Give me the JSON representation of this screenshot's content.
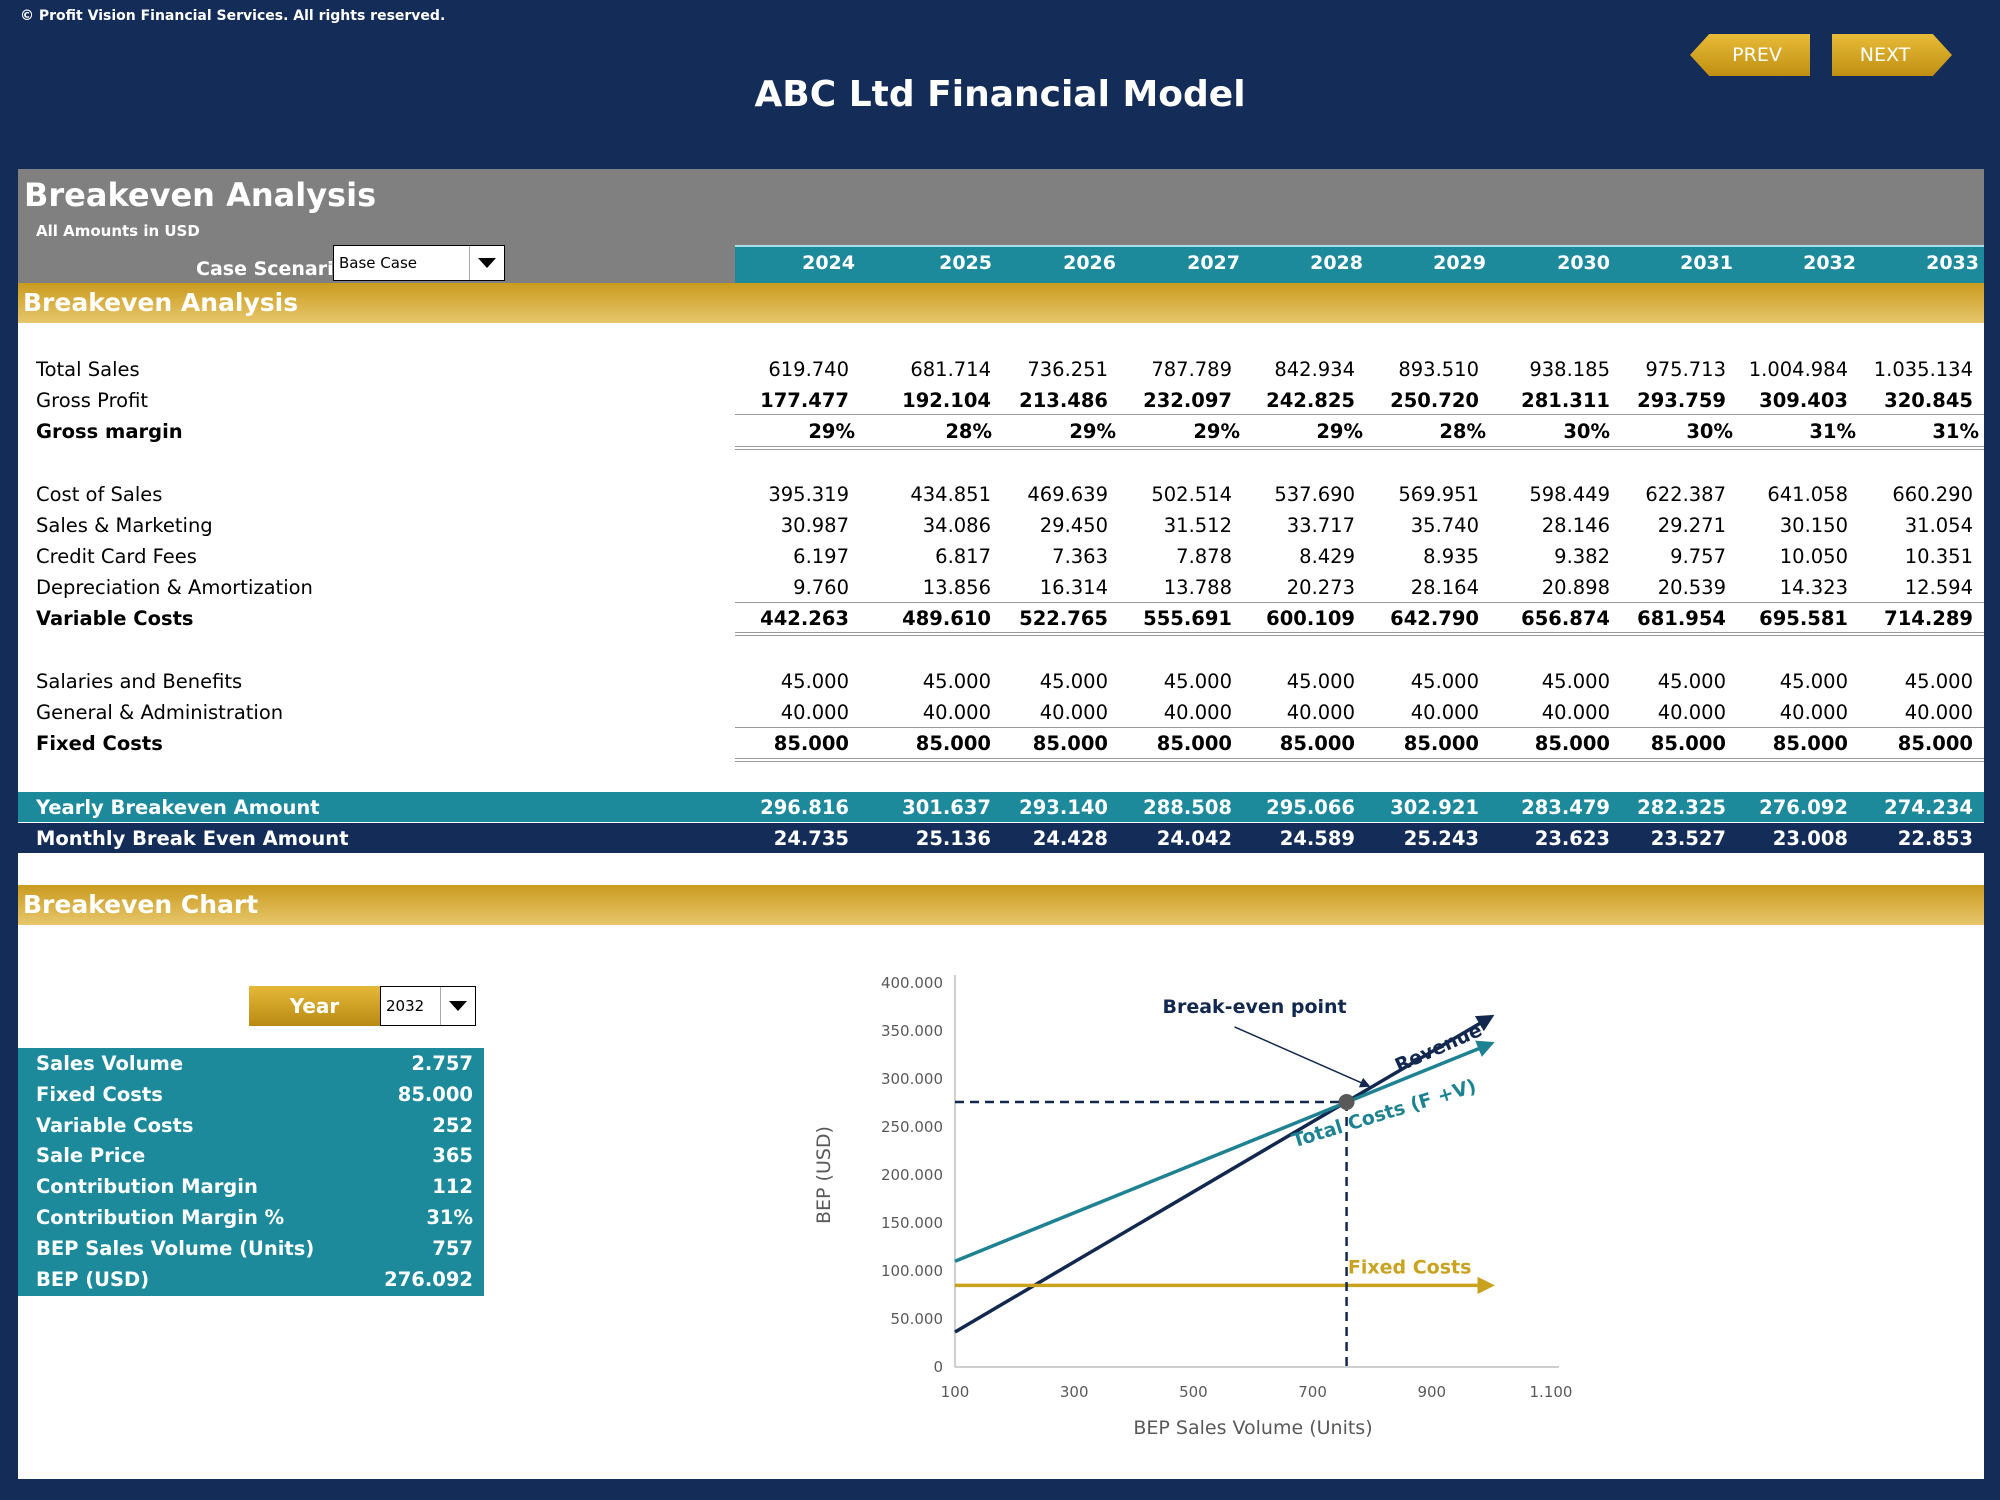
{
  "copyright": "© Profit Vision Financial Services. All rights reserved.",
  "title": "ABC Ltd Financial Model",
  "nav": {
    "prev": "PREV",
    "next": "NEXT"
  },
  "sheet": {
    "title": "Breakeven Analysis",
    "amounts_note": "All Amounts in  USD",
    "case_label": "Case Scenario",
    "case_value": "Base Case",
    "section_title": "Breakeven Analysis",
    "chart_section_title": "Breakeven Chart"
  },
  "years": [
    "2024",
    "2025",
    "2026",
    "2027",
    "2028",
    "2029",
    "2030",
    "2031",
    "2032",
    "2033"
  ],
  "rows": {
    "total_sales": {
      "label": "Total Sales",
      "values": [
        "619.740",
        "681.714",
        "736.251",
        "787.789",
        "842.934",
        "893.510",
        "938.185",
        "975.713",
        "1.004.984",
        "1.035.134"
      ]
    },
    "gross_profit": {
      "label": "Gross Profit",
      "values": [
        "177.477",
        "192.104",
        "213.486",
        "232.097",
        "242.825",
        "250.720",
        "281.311",
        "293.759",
        "309.403",
        "320.845"
      ]
    },
    "gross_margin": {
      "label": "Gross margin",
      "values": [
        "29%",
        "28%",
        "29%",
        "29%",
        "29%",
        "28%",
        "30%",
        "30%",
        "31%",
        "31%"
      ]
    },
    "cost_of_sales": {
      "label": "Cost of Sales",
      "values": [
        "395.319",
        "434.851",
        "469.639",
        "502.514",
        "537.690",
        "569.951",
        "598.449",
        "622.387",
        "641.058",
        "660.290"
      ]
    },
    "sales_marketing": {
      "label": "Sales & Marketing",
      "values": [
        "30.987",
        "34.086",
        "29.450",
        "31.512",
        "33.717",
        "35.740",
        "28.146",
        "29.271",
        "30.150",
        "31.054"
      ]
    },
    "credit_card_fees": {
      "label": "Credit Card Fees",
      "values": [
        "6.197",
        "6.817",
        "7.363",
        "7.878",
        "8.429",
        "8.935",
        "9.382",
        "9.757",
        "10.050",
        "10.351"
      ]
    },
    "depreciation": {
      "label": "Depreciation & Amortization",
      "values": [
        "9.760",
        "13.856",
        "16.314",
        "13.788",
        "20.273",
        "28.164",
        "20.898",
        "20.539",
        "14.323",
        "12.594"
      ]
    },
    "variable_costs": {
      "label": "Variable Costs",
      "values": [
        "442.263",
        "489.610",
        "522.765",
        "555.691",
        "600.109",
        "642.790",
        "656.874",
        "681.954",
        "695.581",
        "714.289"
      ]
    },
    "salaries": {
      "label": "Salaries and Benefits",
      "values": [
        "45.000",
        "45.000",
        "45.000",
        "45.000",
        "45.000",
        "45.000",
        "45.000",
        "45.000",
        "45.000",
        "45.000"
      ]
    },
    "general_admin": {
      "label": "General & Administration",
      "values": [
        "40.000",
        "40.000",
        "40.000",
        "40.000",
        "40.000",
        "40.000",
        "40.000",
        "40.000",
        "40.000",
        "40.000"
      ]
    },
    "fixed_costs": {
      "label": "Fixed Costs",
      "values": [
        "85.000",
        "85.000",
        "85.000",
        "85.000",
        "85.000",
        "85.000",
        "85.000",
        "85.000",
        "85.000",
        "85.000"
      ]
    },
    "yearly_breakeven": {
      "label": "Yearly Breakeven Amount",
      "values": [
        "296.816",
        "301.637",
        "293.140",
        "288.508",
        "295.066",
        "302.921",
        "283.479",
        "282.325",
        "276.092",
        "274.234"
      ]
    },
    "monthly_breakeven": {
      "label": "Monthly Break Even Amount",
      "values": [
        "24.735",
        "25.136",
        "24.428",
        "24.042",
        "24.589",
        "25.243",
        "23.623",
        "23.527",
        "23.008",
        "22.853"
      ]
    }
  },
  "year_selector": {
    "label": "Year",
    "value": "2032"
  },
  "summary": [
    {
      "label": "Sales Volume",
      "value": "2.757"
    },
    {
      "label": "Fixed Costs",
      "value": "85.000"
    },
    {
      "label": "Variable Costs",
      "value": "252"
    },
    {
      "label": "Sale Price",
      "value": "365"
    },
    {
      "label": "Contribution Margin",
      "value": "112"
    },
    {
      "label": "Contribution Margin %",
      "value": "31%"
    },
    {
      "label": "BEP Sales Volume (Units)",
      "value": "757"
    },
    {
      "label": "BEP (USD)",
      "value": "276.092"
    }
  ],
  "chart_data": {
    "type": "line",
    "xlabel": "BEP Sales Volume (Units)",
    "ylabel": "BEP (USD)",
    "xlim": [
      100,
      1100
    ],
    "ylim": [
      0,
      400000
    ],
    "x_ticks": [
      "100",
      "300",
      "500",
      "700",
      "900",
      "1.100"
    ],
    "y_ticks": [
      "0",
      "50.000",
      "100.000",
      "150.000",
      "200.000",
      "250.000",
      "300.000",
      "350.000",
      "400.000"
    ],
    "grid": false,
    "series": [
      {
        "name": "Revenue",
        "color": "#12284f",
        "x": [
          100,
          1000
        ],
        "y": [
          36500,
          365000
        ]
      },
      {
        "name": "Total Costs (F +V)",
        "color": "#1f8293",
        "x": [
          100,
          1000
        ],
        "y": [
          110200,
          337000
        ]
      },
      {
        "name": "Fixed Costs",
        "color": "#c9a21f",
        "x": [
          100,
          1000
        ],
        "y": [
          85000,
          85000
        ]
      }
    ],
    "breakeven_point": {
      "x": 757,
      "y": 276092
    },
    "annotation": "Break-even point"
  }
}
